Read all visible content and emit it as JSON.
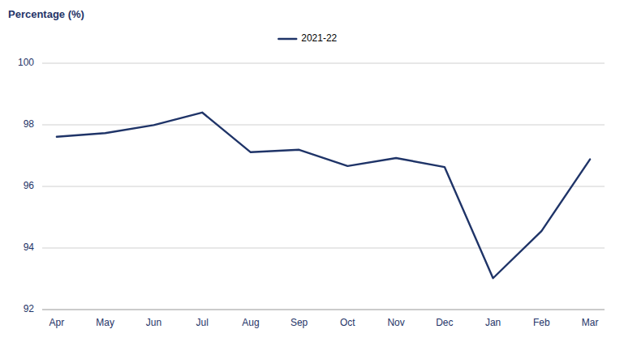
{
  "chart_data": {
    "type": "line",
    "ylabel": "Percentage (%)",
    "categories": [
      "Apr",
      "May",
      "Jun",
      "Jul",
      "Aug",
      "Sep",
      "Oct",
      "Nov",
      "Dec",
      "Jan",
      "Feb",
      "Mar"
    ],
    "series": [
      {
        "name": "2021-22",
        "color": "#1f3468",
        "values": [
          97.61,
          97.73,
          97.99,
          98.4,
          97.11,
          97.19,
          96.66,
          96.92,
          96.63,
          93.02,
          94.55,
          96.88
        ]
      }
    ],
    "ylim": [
      92,
      100
    ],
    "yticks": [
      92,
      94,
      96,
      98,
      100
    ],
    "grid": true,
    "legend": "top"
  }
}
